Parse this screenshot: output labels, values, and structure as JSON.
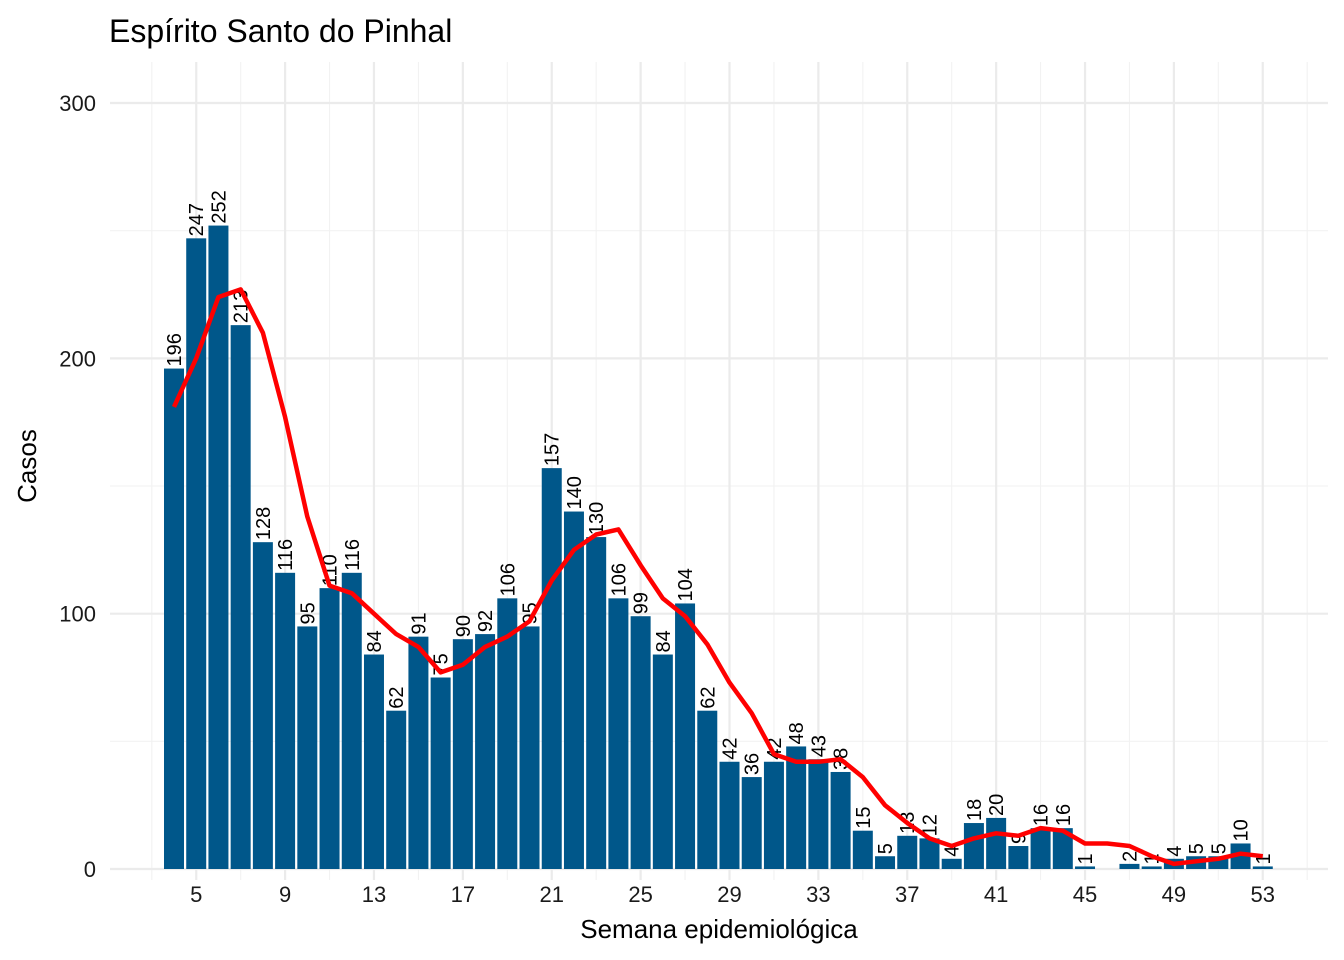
{
  "chart_data": {
    "type": "bar",
    "title": "Espírito Santo do Pinhal",
    "xlabel": "Semana epidemiológica",
    "ylabel": "Casos",
    "x": [
      4,
      5,
      6,
      7,
      8,
      9,
      10,
      11,
      12,
      13,
      14,
      15,
      16,
      17,
      18,
      19,
      20,
      21,
      22,
      23,
      24,
      25,
      26,
      27,
      28,
      29,
      30,
      31,
      32,
      33,
      34,
      35,
      36,
      37,
      38,
      39,
      40,
      41,
      42,
      43,
      44,
      45,
      46,
      47,
      48,
      49,
      50,
      51,
      52,
      53
    ],
    "values": [
      196,
      247,
      252,
      213,
      128,
      116,
      95,
      110,
      116,
      84,
      62,
      91,
      75,
      90,
      92,
      106,
      95,
      157,
      140,
      130,
      106,
      99,
      84,
      104,
      62,
      42,
      36,
      42,
      48,
      43,
      38,
      15,
      5,
      13,
      12,
      4,
      18,
      20,
      9,
      16,
      16,
      1,
      0,
      2,
      1,
      4,
      5,
      5,
      10,
      1
    ],
    "bar_labels": [
      "196",
      "247",
      "252",
      "213",
      "128",
      "116",
      "95",
      "110",
      "116",
      "84",
      "62",
      "91",
      "75",
      "90",
      "92",
      "106",
      "95",
      "157",
      "140",
      "130",
      "106",
      "99",
      "84",
      "104",
      "62",
      "42",
      "36",
      "42",
      "48",
      "43",
      "38",
      "15",
      "5",
      "13",
      "12",
      "4",
      "18",
      "20",
      "9",
      "16",
      "16",
      "1",
      "",
      "2",
      "1",
      "4",
      "5",
      "5",
      "10",
      "1"
    ],
    "smooth": [
      181,
      200,
      224,
      227,
      210,
      177,
      138,
      111,
      108,
      100,
      92,
      87,
      77,
      80,
      87,
      91,
      97,
      113,
      125,
      131,
      133,
      119,
      106,
      99,
      88,
      73,
      61,
      45,
      42,
      42,
      43,
      36,
      25,
      18,
      12,
      9,
      12,
      14,
      13,
      16,
      15,
      10,
      10,
      9,
      5,
      2,
      3,
      4,
      6,
      5
    ],
    "xticks": [
      5,
      9,
      13,
      17,
      21,
      25,
      29,
      33,
      37,
      41,
      45,
      49,
      53
    ],
    "xtick_labels": [
      "5",
      "9",
      "13",
      "17",
      "21",
      "25",
      "29",
      "33",
      "37",
      "41",
      "45",
      "49",
      "53"
    ],
    "yticks": [
      0,
      100,
      200,
      300
    ],
    "ytick_labels": [
      "0",
      "100",
      "200",
      "300"
    ],
    "xlim": [
      3.4,
      54.9
    ],
    "ylim": [
      0,
      315
    ],
    "bar_color": "#00578a",
    "line_color": "#ff0000",
    "grid": true
  }
}
